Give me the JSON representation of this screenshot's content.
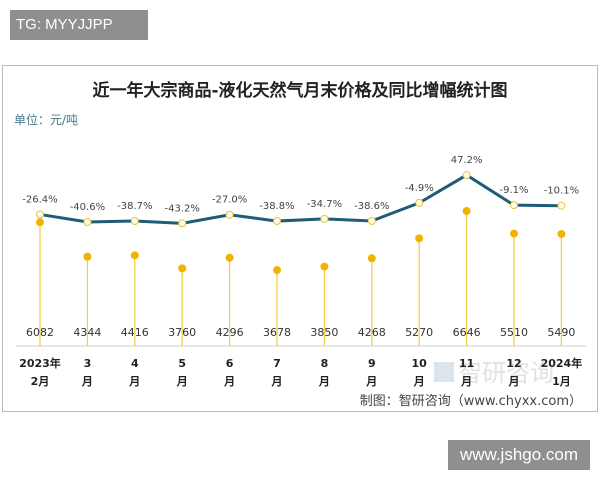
{
  "overlay_tag": "TG: MYYJJPP",
  "watermark": "www.jshgo.com",
  "chart_data": {
    "type": "line+lollipop",
    "title": "近一年大宗商品-液化天然气月末价格及同比增幅统计图",
    "unit_label": "单位：元/吨",
    "source": "制图：智研咨询（www.chyxx.com）",
    "logo_text": "智研咨询 www.chyxx.com",
    "categories": [
      [
        "2023年",
        "2月"
      ],
      [
        "3",
        "月"
      ],
      [
        "4",
        "月"
      ],
      [
        "5",
        "月"
      ],
      [
        "6",
        "月"
      ],
      [
        "7",
        "月"
      ],
      [
        "8",
        "月"
      ],
      [
        "9",
        "月"
      ],
      [
        "10",
        "月"
      ],
      [
        "11",
        "月"
      ],
      [
        "12",
        "月"
      ],
      [
        "2024年",
        "1月"
      ]
    ],
    "series": [
      {
        "kind": "price",
        "unit": "元/吨",
        "values": [
          6082,
          4344,
          4416,
          3760,
          4296,
          3678,
          3850,
          4268,
          5270,
          6646,
          5510,
          5490
        ],
        "color": "#f0b400"
      },
      {
        "kind": "yoy",
        "unit": "%",
        "values": [
          -26.4,
          -40.6,
          -38.7,
          -43.2,
          -27.0,
          -38.8,
          -34.7,
          -38.6,
          -4.9,
          47.2,
          -9.1,
          -10.1
        ],
        "labels": [
          "-26.4%",
          "-40.6%",
          "-38.7%",
          "-43.2%",
          "-27.0%",
          "-38.8%",
          "-34.7%",
          "-38.6%",
          "-4.9%",
          "47.2%",
          "-9.1%",
          "-10.1%"
        ],
        "color": "#1f5c78"
      }
    ],
    "grid": false,
    "legend": "none"
  }
}
